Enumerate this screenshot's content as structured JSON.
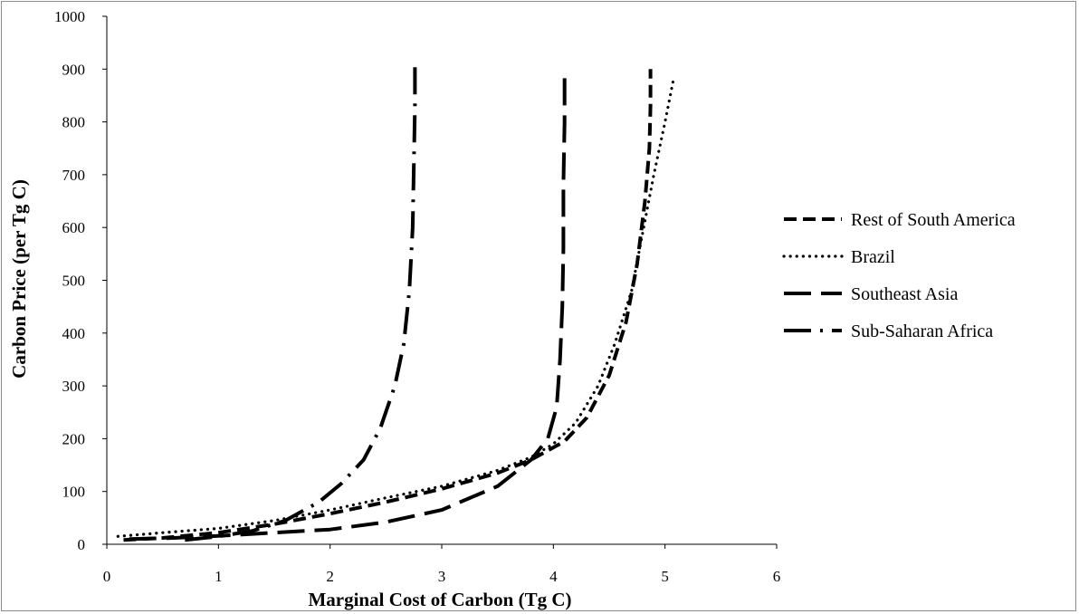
{
  "chart_data": {
    "type": "line",
    "title": "",
    "xlabel": "Marginal Cost of Carbon (Tg C)",
    "ylabel": "Carbon Price (per Tg C)",
    "xlim": [
      0,
      6
    ],
    "ylim": [
      0,
      1000
    ],
    "x_ticks": [
      "0",
      "1",
      "2",
      "3",
      "4",
      "5",
      "6"
    ],
    "y_ticks": [
      "0",
      "100",
      "200",
      "300",
      "400",
      "500",
      "600",
      "700",
      "800",
      "900",
      "1000"
    ],
    "grid": false,
    "legend_position": "right",
    "series": [
      {
        "name": "Rest of South America",
        "dash": "dash",
        "points": [
          [
            0.15,
            8
          ],
          [
            0.5,
            12
          ],
          [
            1.0,
            22
          ],
          [
            1.5,
            38
          ],
          [
            2.0,
            58
          ],
          [
            2.5,
            80
          ],
          [
            3.0,
            105
          ],
          [
            3.5,
            135
          ],
          [
            3.8,
            160
          ],
          [
            4.1,
            195
          ],
          [
            4.3,
            240
          ],
          [
            4.5,
            320
          ],
          [
            4.65,
            420
          ],
          [
            4.75,
            530
          ],
          [
            4.82,
            650
          ],
          [
            4.86,
            750
          ],
          [
            4.87,
            830
          ],
          [
            4.87,
            900
          ]
        ]
      },
      {
        "name": "Brazil",
        "dash": "dot",
        "points": [
          [
            0.1,
            15
          ],
          [
            0.5,
            22
          ],
          [
            1.0,
            30
          ],
          [
            1.5,
            45
          ],
          [
            2.0,
            65
          ],
          [
            2.5,
            88
          ],
          [
            3.0,
            110
          ],
          [
            3.5,
            140
          ],
          [
            3.8,
            165
          ],
          [
            4.0,
            190
          ],
          [
            4.2,
            230
          ],
          [
            4.4,
            300
          ],
          [
            4.55,
            380
          ],
          [
            4.7,
            480
          ],
          [
            4.8,
            590
          ],
          [
            4.9,
            700
          ],
          [
            5.0,
            800
          ],
          [
            5.08,
            885
          ]
        ]
      },
      {
        "name": "Southeast Asia",
        "dash": "longdash",
        "points": [
          [
            0.2,
            10
          ],
          [
            0.6,
            12
          ],
          [
            1.0,
            16
          ],
          [
            1.5,
            22
          ],
          [
            2.0,
            28
          ],
          [
            2.5,
            42
          ],
          [
            3.0,
            65
          ],
          [
            3.5,
            110
          ],
          [
            3.8,
            160
          ],
          [
            3.95,
            200
          ],
          [
            4.03,
            260
          ],
          [
            4.06,
            350
          ],
          [
            4.08,
            450
          ],
          [
            4.09,
            560
          ],
          [
            4.09,
            680
          ],
          [
            4.1,
            800
          ],
          [
            4.1,
            900
          ]
        ]
      },
      {
        "name": "Sub-Saharan Africa",
        "dash": "longdashdot",
        "points": [
          [
            0.7,
            8
          ],
          [
            1.0,
            15
          ],
          [
            1.3,
            25
          ],
          [
            1.6,
            45
          ],
          [
            1.9,
            80
          ],
          [
            2.1,
            115
          ],
          [
            2.3,
            160
          ],
          [
            2.45,
            220
          ],
          [
            2.58,
            300
          ],
          [
            2.66,
            380
          ],
          [
            2.71,
            480
          ],
          [
            2.74,
            600
          ],
          [
            2.75,
            720
          ],
          [
            2.76,
            830
          ],
          [
            2.76,
            905
          ]
        ]
      }
    ]
  }
}
